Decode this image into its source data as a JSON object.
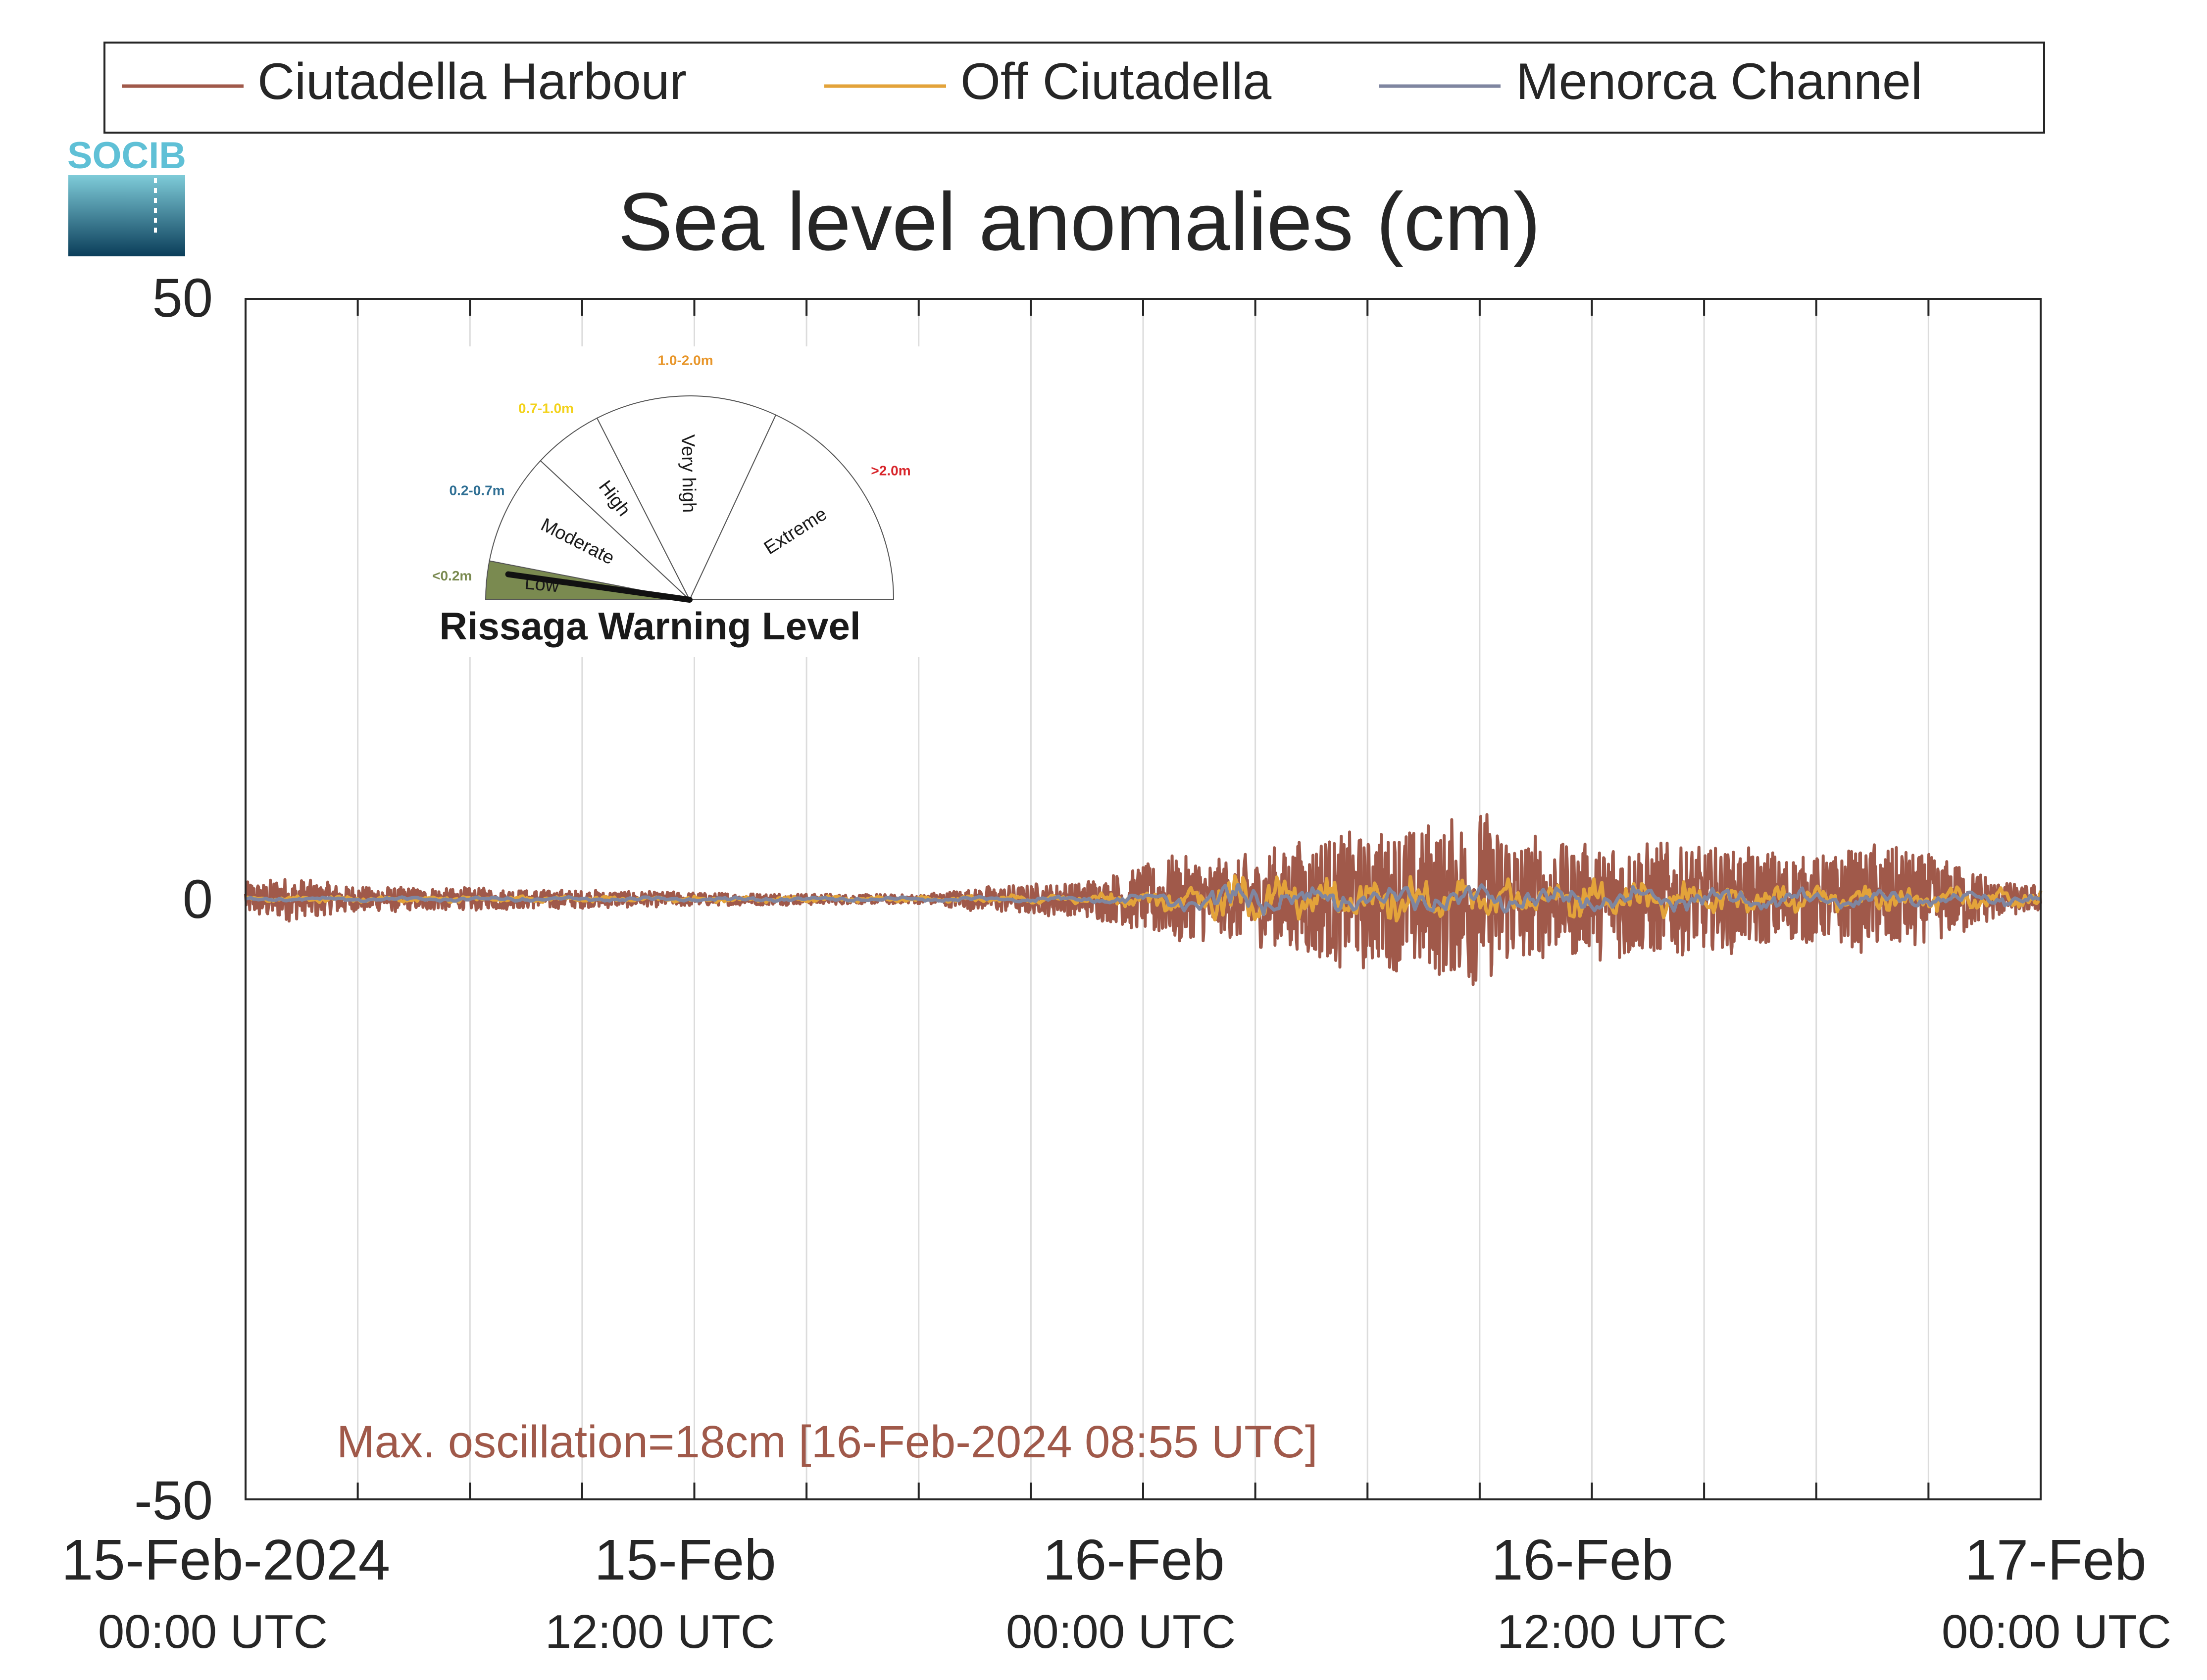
{
  "chart_data": {
    "type": "line",
    "title": "Sea level anomalies (cm)",
    "ylim": [
      -50,
      50
    ],
    "y_ticks": [
      "50",
      "0",
      "-50"
    ],
    "xlim_hours": [
      0,
      48
    ],
    "x_ticks": [
      {
        "hour": 0,
        "date": "15-Feb-2024",
        "time": "00:00 UTC"
      },
      {
        "hour": 12,
        "date": "15-Feb",
        "time": "12:00 UTC"
      },
      {
        "hour": 24,
        "date": "16-Feb",
        "time": "00:00 UTC"
      },
      {
        "hour": 36,
        "date": "16-Feb",
        "time": "12:00 UTC"
      },
      {
        "hour": 48,
        "date": "17-Feb",
        "time": "00:00 UTC"
      }
    ],
    "grid_hours": [
      3,
      6,
      9,
      12,
      15,
      18,
      21,
      24,
      27,
      30,
      33,
      36,
      39,
      42,
      45
    ],
    "grid": true,
    "legend_position": "top",
    "series": [
      {
        "name": "Ciutadella Harbour",
        "color": "#a0594a",
        "envelope": {
          "hours": [
            0,
            1,
            3,
            6,
            9,
            12,
            15,
            18,
            19,
            20,
            22,
            23,
            24,
            25,
            26,
            27,
            28,
            29,
            30,
            31,
            32,
            33,
            34,
            35,
            36,
            37,
            38,
            40,
            42,
            44,
            45,
            46,
            47,
            48
          ],
          "amplitude_cm": [
            1.5,
            2,
            1.2,
            1,
            0.8,
            0.6,
            0.5,
            0.4,
            0.8,
            1.2,
            1.5,
            2,
            3,
            4,
            3.5,
            4,
            5,
            6,
            6,
            6.5,
            7,
            8,
            6,
            5,
            5,
            5.5,
            5,
            4.5,
            4,
            5,
            4,
            3,
            1.5,
            1.2
          ]
        }
      },
      {
        "name": "Off Ciutadella",
        "color": "#e3a33a",
        "envelope": {
          "hours": [
            0,
            6,
            12,
            18,
            22,
            24,
            25,
            26,
            27,
            28,
            30,
            32,
            34,
            36,
            40,
            44,
            48
          ],
          "amplitude_cm": [
            0.3,
            0.3,
            0.3,
            0.3,
            0.5,
            0.8,
            1.5,
            2,
            2.5,
            2,
            2,
            2.5,
            2,
            2,
            1.5,
            1.2,
            1
          ]
        }
      },
      {
        "name": "Menorca Channel",
        "color": "#7f86a0",
        "envelope": {
          "hours": [
            0,
            6,
            12,
            18,
            22,
            24,
            25,
            26,
            27,
            28,
            30,
            32,
            34,
            36,
            40,
            44,
            48
          ],
          "amplitude_cm": [
            0.2,
            0.2,
            0.2,
            0.2,
            0.3,
            0.6,
            1,
            1.5,
            1.8,
            1.2,
            1.2,
            1.5,
            1.5,
            1.2,
            1,
            0.8,
            0.6
          ]
        }
      }
    ],
    "annotation": "Max. oscillation=18cm [16-Feb-2024 08:55 UTC]",
    "annotation_color": "#a0594a"
  },
  "logo": {
    "text": "SOCIB",
    "color": "#5fc0d6"
  },
  "warning_gauge": {
    "title": "Rissaga Warning Level",
    "current_level": "Low",
    "sectors": [
      {
        "label": "Low",
        "range": "<0.2m",
        "color": "#7a8a50"
      },
      {
        "label": "Moderate",
        "range": "0.2-0.7m",
        "color": "#2f6f94"
      },
      {
        "label": "High",
        "range": "0.7-1.0m",
        "color": "#f3d21a"
      },
      {
        "label": "Very high",
        "range": "1.0-2.0m",
        "color": "#e8962a"
      },
      {
        "label": "Extreme",
        "range": ">2.0m",
        "color": "#d8262c"
      }
    ]
  }
}
